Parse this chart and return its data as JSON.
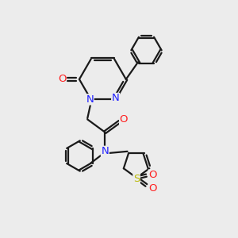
{
  "bg_color": "#ececec",
  "bond_color": "#1a1a1a",
  "N_color": "#2020ff",
  "O_color": "#ff2020",
  "S_color": "#b8b800",
  "lw": 1.6,
  "dbo": 0.055,
  "figsize": [
    3.0,
    3.0
  ],
  "dpi": 100,
  "xlim": [
    0,
    10
  ],
  "ylim": [
    0,
    10
  ],
  "fontsize": 9.5
}
